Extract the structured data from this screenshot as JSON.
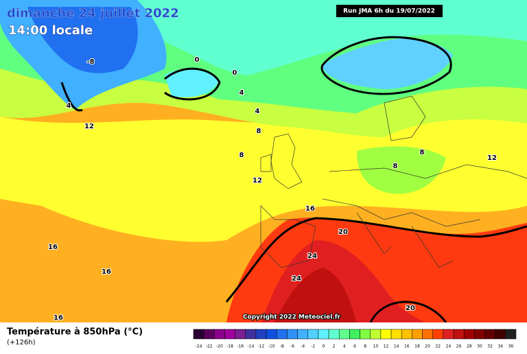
{
  "map": {
    "title": "dimanche 24 juillet 2022",
    "time": "14:00 locale",
    "run": "Run JMA 6h du 19/07/2022",
    "copyright": "Copyright 2022 Meteociel.fr",
    "variable": "Température à 850hPa (°C)",
    "lead": "(+126h)",
    "contour_labels": [
      -8,
      0,
      0,
      4,
      4,
      12,
      4,
      8,
      8,
      12,
      8,
      8,
      12,
      16,
      20,
      16,
      16,
      24,
      24,
      16,
      20
    ],
    "scale": {
      "values": [
        -24,
        -22,
        -20,
        -18,
        -16,
        -14,
        -12,
        -10,
        -8,
        -6,
        -4,
        -2,
        0,
        2,
        4,
        6,
        8,
        10,
        12,
        14,
        16,
        18,
        20,
        22,
        24,
        26,
        28,
        30,
        32,
        34,
        36
      ],
      "colors": [
        "#2a0030",
        "#5a005a",
        "#8a008a",
        "#a000a0",
        "#7a2090",
        "#4030a0",
        "#2040c0",
        "#1050e0",
        "#2070f0",
        "#3090f8",
        "#40b0ff",
        "#50d0ff",
        "#60f0ff",
        "#60ffd0",
        "#60ff90",
        "#40f060",
        "#80ff40",
        "#c0ff30",
        "#ffff00",
        "#ffe000",
        "#ffc000",
        "#ffa000",
        "#ff7000",
        "#ff4000",
        "#e02020",
        "#c01010",
        "#a00000",
        "#800000",
        "#600000",
        "#400000",
        "#202020"
      ]
    }
  }
}
